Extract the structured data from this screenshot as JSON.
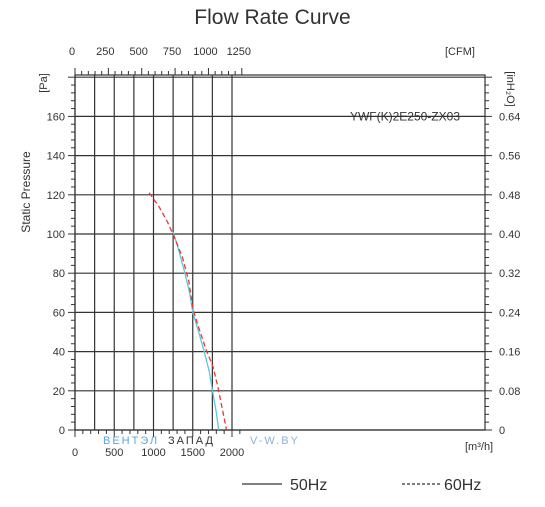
{
  "chart_data": {
    "type": "line",
    "title": "Flow Rate Curve",
    "ylabel": "Static Pressure",
    "y_unit_left": "[Pa]",
    "y_unit_right": "[inH₂O]",
    "x_unit_bottom": "[m³/h]",
    "x_unit_top": "[CFM]",
    "model": "YWF(K)2E250-ZX03",
    "xlim": [
      0,
      2100
    ],
    "ylim": [
      0,
      180
    ],
    "grid": true,
    "x_ticks_bottom": [
      {
        "value": 0,
        "label": "0"
      },
      {
        "value": 500,
        "label": "500"
      },
      {
        "value": 1000,
        "label": "1000"
      },
      {
        "value": 1500,
        "label": "1500"
      },
      {
        "value": 2000,
        "label": "2000"
      }
    ],
    "x_ticks_top": [
      {
        "value": 0,
        "label": "0"
      },
      {
        "value": 425,
        "label": "250"
      },
      {
        "value": 850,
        "label": "500"
      },
      {
        "value": 1275,
        "label": "750"
      },
      {
        "value": 1700,
        "label": "1000"
      },
      {
        "value": 2125,
        "label": "1250"
      }
    ],
    "y_ticks_left": [
      {
        "value": 0,
        "label": "0"
      },
      {
        "value": 20,
        "label": "20"
      },
      {
        "value": 40,
        "label": "40"
      },
      {
        "value": 60,
        "label": "60"
      },
      {
        "value": 80,
        "label": "80"
      },
      {
        "value": 100,
        "label": "100"
      },
      {
        "value": 120,
        "label": "120"
      },
      {
        "value": 140,
        "label": "140"
      },
      {
        "value": 160,
        "label": "160"
      }
    ],
    "y_ticks_right": [
      {
        "value": 0,
        "label": "0"
      },
      {
        "value": 20,
        "label": "0.08"
      },
      {
        "value": 40,
        "label": "0.16"
      },
      {
        "value": 60,
        "label": "0.24"
      },
      {
        "value": 80,
        "label": "0.32"
      },
      {
        "value": 100,
        "label": "0.40"
      },
      {
        "value": 120,
        "label": "0.48"
      },
      {
        "value": 140,
        "label": "0.56"
      },
      {
        "value": 160,
        "label": "0.64"
      }
    ],
    "series": [
      {
        "name": "50Hz",
        "color": "#5bc8dc",
        "style": "solid",
        "points": [
          [
            1250,
            101
          ],
          [
            1320,
            92
          ],
          [
            1400,
            80
          ],
          [
            1460,
            70
          ],
          [
            1500,
            60
          ],
          [
            1560,
            52
          ],
          [
            1640,
            41
          ],
          [
            1710,
            30
          ],
          [
            1760,
            18
          ],
          [
            1800,
            9
          ],
          [
            1830,
            0
          ]
        ]
      },
      {
        "name": "60Hz",
        "color": "#e53935",
        "style": "dashed",
        "points": [
          [
            945,
            121
          ],
          [
            1070,
            114
          ],
          [
            1180,
            106
          ],
          [
            1280,
            97
          ],
          [
            1370,
            88
          ],
          [
            1450,
            76
          ],
          [
            1500,
            62
          ],
          [
            1570,
            53
          ],
          [
            1670,
            41
          ],
          [
            1760,
            32
          ],
          [
            1820,
            22
          ],
          [
            1870,
            12
          ],
          [
            1900,
            6
          ],
          [
            1930,
            0
          ]
        ]
      }
    ]
  },
  "watermark": {
    "part1": "ВЕНТЭЛ",
    "part2": "ЗАПАД",
    "part3": "V-W.BY",
    "color1": "#5ba7e0",
    "color2": "#333333",
    "color3": "#8ab4d8"
  },
  "colors": {
    "grid": "#333333",
    "axis": "#333333"
  }
}
